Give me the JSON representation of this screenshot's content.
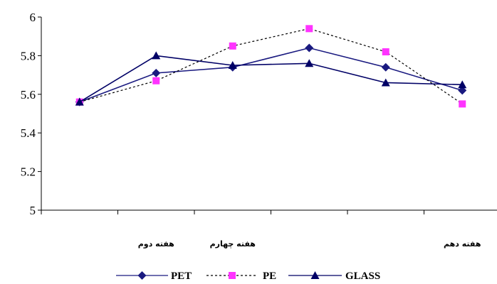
{
  "chart_data": {
    "type": "line",
    "title": "",
    "xlabel": "",
    "ylabel": "",
    "ylim": [
      5,
      6
    ],
    "yticks": [
      "5",
      "5.2",
      "5.4",
      "5.6",
      "5.8",
      "6"
    ],
    "x_tick_labels": [
      "",
      "هفته دوم",
      "هفته چهارم",
      "",
      "",
      "هفته دهم"
    ],
    "grid": false,
    "legend_position": "bottom",
    "series": [
      {
        "name": "PET",
        "color": "#1a1a80",
        "marker": "diamond",
        "line": "solid",
        "values": [
          5.56,
          5.71,
          5.74,
          5.84,
          5.74,
          5.62
        ]
      },
      {
        "name": "PE",
        "color": "#ff33ff",
        "marker": "square",
        "line": "dashed",
        "values": [
          5.56,
          5.67,
          5.85,
          5.94,
          5.82,
          5.55
        ]
      },
      {
        "name": "GLASS",
        "color": "#000066",
        "marker": "triangle",
        "line": "solid",
        "values": [
          5.56,
          5.8,
          5.75,
          5.76,
          5.66,
          5.65
        ]
      }
    ]
  }
}
